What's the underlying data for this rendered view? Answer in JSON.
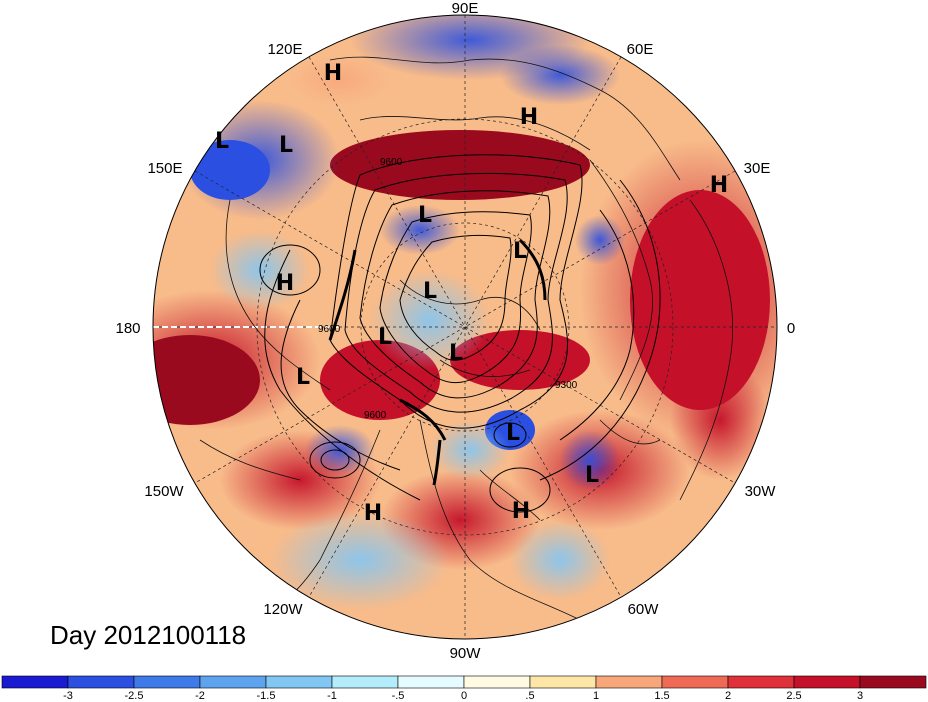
{
  "title": "Day 2012100118",
  "longitude_labels": {
    "top": "90E",
    "upper_left": "120E",
    "upper_right": "60E",
    "left_upper": "150E",
    "right_upper": "30E",
    "left": "180",
    "right": "0",
    "left_lower": "150W",
    "right_lower": "30W",
    "lower_left": "120W",
    "lower_right": "60W",
    "bottom": "90W"
  },
  "pressure_centers": [
    {
      "label": "H"
    },
    {
      "label": "H"
    },
    {
      "label": "H"
    },
    {
      "label": "H"
    },
    {
      "label": "H"
    },
    {
      "label": "H"
    },
    {
      "label": "L"
    },
    {
      "label": "L"
    },
    {
      "label": "L"
    },
    {
      "label": "L"
    },
    {
      "label": "L"
    },
    {
      "label": "L"
    },
    {
      "label": "L"
    },
    {
      "label": "L"
    },
    {
      "label": "L"
    },
    {
      "label": "L"
    }
  ],
  "contour_labels": [
    "9600",
    "9600",
    "9600",
    "9300"
  ],
  "colorbar": {
    "colors": [
      "#1a1ad0",
      "#2b4fe0",
      "#3f7be8",
      "#5ea3ee",
      "#82c6f4",
      "#b3ecfa",
      "#e6fbff",
      "#fffbe3",
      "#fde6a6",
      "#f8a77a",
      "#ef6a55",
      "#e0303a",
      "#c41028",
      "#9a0a1e"
    ],
    "ticks": [
      "-3",
      "-2.5",
      "-2",
      "-1.5",
      "-1",
      "-.5",
      "0",
      ".5",
      "1",
      "1.5",
      "2",
      "2.5",
      "3"
    ]
  }
}
